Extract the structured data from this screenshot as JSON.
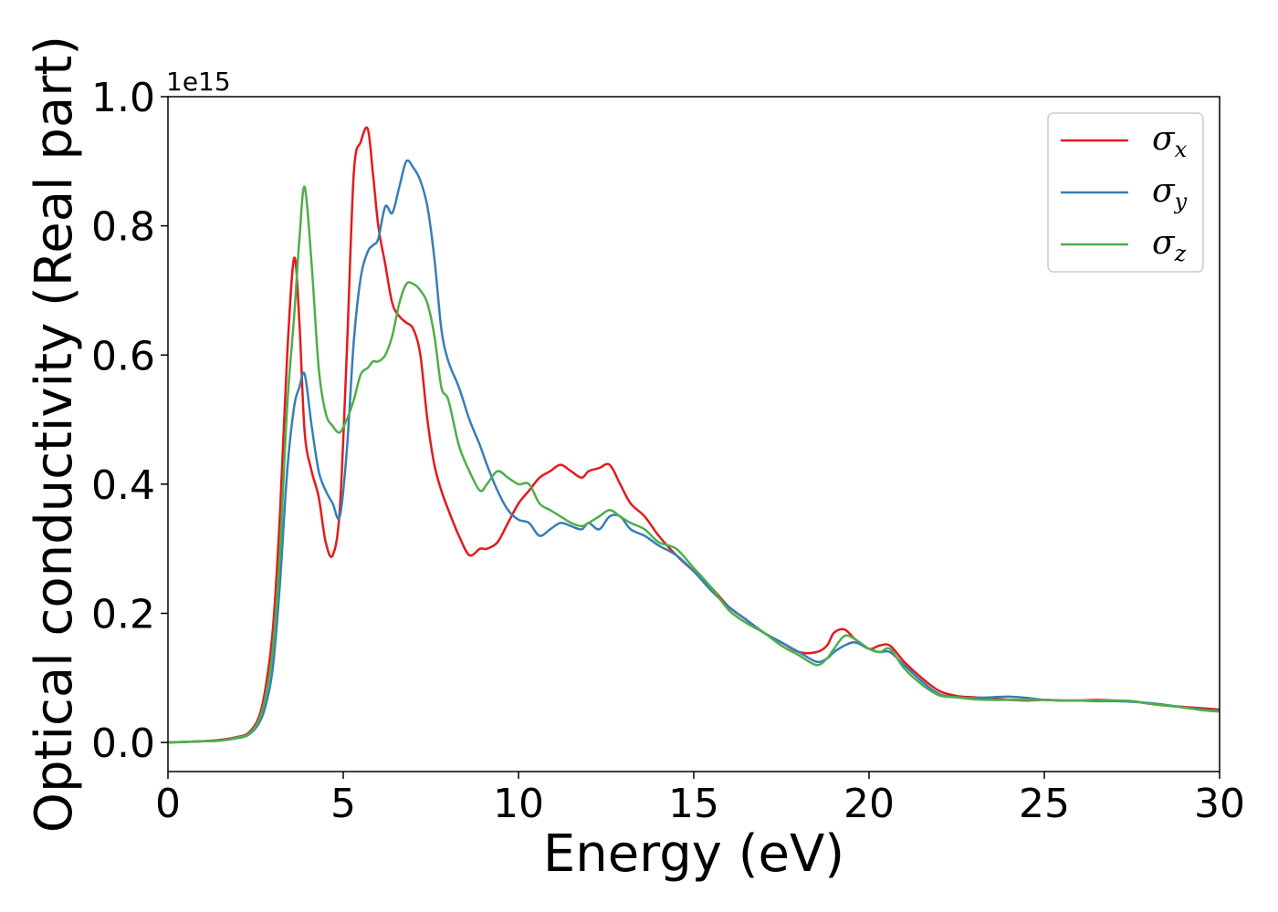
{
  "chart_data": {
    "type": "line",
    "title": "",
    "xlabel": "Energy (eV)",
    "ylabel": "Optical conductivity (Real part)",
    "y_offset_label": "1e15",
    "xlim": [
      0,
      30
    ],
    "ylim": [
      -0.045,
      1.0
    ],
    "xticks": [
      0,
      5,
      10,
      15,
      20,
      25,
      30
    ],
    "xtick_labels": [
      "0",
      "5",
      "10",
      "15",
      "20",
      "25",
      "30"
    ],
    "yticks": [
      0.0,
      0.2,
      0.4,
      0.6,
      0.8,
      1.0
    ],
    "ytick_labels": [
      "0.0",
      "0.2",
      "0.4",
      "0.6",
      "0.8",
      "1.0"
    ],
    "grid": false,
    "legend_position": "top-right",
    "series": [
      {
        "name": "σx",
        "symbol": "σ",
        "subscript": "x",
        "color": "#e41a1c",
        "x": [
          0,
          1,
          1.5,
          2,
          2.3,
          2.6,
          2.8,
          3.0,
          3.2,
          3.4,
          3.6,
          3.75,
          3.9,
          4.1,
          4.3,
          4.5,
          4.7,
          4.9,
          5.1,
          5.3,
          5.5,
          5.7,
          5.85,
          6.0,
          6.2,
          6.4,
          6.6,
          6.8,
          7.0,
          7.2,
          7.4,
          7.6,
          7.8,
          8.0,
          8.3,
          8.6,
          8.9,
          9.1,
          9.4,
          9.7,
          10.0,
          10.3,
          10.6,
          10.9,
          11.2,
          11.5,
          11.8,
          12.0,
          12.3,
          12.6,
          12.9,
          13.2,
          13.6,
          14.0,
          14.5,
          15.0,
          15.5,
          16.0,
          16.5,
          17.0,
          17.5,
          18.0,
          18.5,
          18.8,
          19.0,
          19.3,
          19.6,
          20.0,
          20.3,
          20.6,
          21.0,
          21.5,
          22.0,
          22.5,
          23.0,
          23.5,
          24.0,
          24.5,
          25.0,
          25.5,
          26.0,
          26.5,
          27.0,
          27.5,
          28.0,
          28.5,
          29.0,
          29.5,
          30.0
        ],
        "values": [
          0.0,
          0.002,
          0.004,
          0.009,
          0.015,
          0.04,
          0.09,
          0.18,
          0.36,
          0.6,
          0.75,
          0.65,
          0.48,
          0.42,
          0.38,
          0.31,
          0.29,
          0.36,
          0.6,
          0.88,
          0.93,
          0.95,
          0.88,
          0.8,
          0.74,
          0.68,
          0.66,
          0.65,
          0.64,
          0.6,
          0.5,
          0.43,
          0.39,
          0.36,
          0.32,
          0.29,
          0.3,
          0.3,
          0.31,
          0.34,
          0.37,
          0.39,
          0.41,
          0.42,
          0.43,
          0.42,
          0.41,
          0.42,
          0.425,
          0.43,
          0.4,
          0.37,
          0.35,
          0.32,
          0.29,
          0.265,
          0.24,
          0.21,
          0.19,
          0.17,
          0.155,
          0.14,
          0.14,
          0.15,
          0.17,
          0.175,
          0.16,
          0.145,
          0.15,
          0.15,
          0.125,
          0.1,
          0.08,
          0.072,
          0.07,
          0.068,
          0.066,
          0.065,
          0.066,
          0.065,
          0.065,
          0.066,
          0.065,
          0.064,
          0.06,
          0.057,
          0.055,
          0.053,
          0.051
        ]
      },
      {
        "name": "σy",
        "symbol": "σ",
        "subscript": "y",
        "color": "#377eb8",
        "x": [
          0,
          1,
          1.5,
          2,
          2.3,
          2.6,
          2.8,
          3.0,
          3.2,
          3.4,
          3.6,
          3.75,
          3.9,
          4.1,
          4.3,
          4.5,
          4.7,
          4.9,
          5.1,
          5.3,
          5.5,
          5.7,
          5.85,
          6.0,
          6.2,
          6.4,
          6.6,
          6.8,
          7.0,
          7.2,
          7.4,
          7.6,
          7.8,
          8.0,
          8.3,
          8.6,
          8.9,
          9.1,
          9.4,
          9.7,
          10.0,
          10.3,
          10.6,
          10.9,
          11.2,
          11.5,
          11.8,
          12.0,
          12.3,
          12.6,
          12.9,
          13.2,
          13.6,
          14.0,
          14.5,
          15.0,
          15.5,
          16.0,
          16.5,
          17.0,
          17.5,
          18.0,
          18.5,
          18.8,
          19.0,
          19.3,
          19.6,
          20.0,
          20.3,
          20.6,
          21.0,
          21.5,
          22.0,
          22.5,
          23.0,
          23.5,
          24.0,
          24.5,
          25.0,
          25.5,
          26.0,
          26.5,
          27.0,
          27.5,
          28.0,
          28.5,
          29.0,
          29.5,
          30.0
        ],
        "values": [
          0.0,
          0.002,
          0.003,
          0.007,
          0.012,
          0.03,
          0.06,
          0.12,
          0.25,
          0.42,
          0.52,
          0.55,
          0.57,
          0.49,
          0.42,
          0.39,
          0.37,
          0.35,
          0.45,
          0.62,
          0.72,
          0.76,
          0.77,
          0.78,
          0.83,
          0.82,
          0.86,
          0.9,
          0.89,
          0.87,
          0.83,
          0.75,
          0.64,
          0.59,
          0.55,
          0.5,
          0.46,
          0.43,
          0.39,
          0.36,
          0.345,
          0.34,
          0.32,
          0.33,
          0.34,
          0.335,
          0.33,
          0.34,
          0.33,
          0.35,
          0.35,
          0.33,
          0.32,
          0.305,
          0.29,
          0.265,
          0.235,
          0.21,
          0.19,
          0.17,
          0.155,
          0.14,
          0.125,
          0.13,
          0.14,
          0.15,
          0.155,
          0.145,
          0.14,
          0.14,
          0.12,
          0.095,
          0.075,
          0.07,
          0.069,
          0.07,
          0.071,
          0.069,
          0.066,
          0.065,
          0.065,
          0.064,
          0.064,
          0.063,
          0.061,
          0.058,
          0.054,
          0.051,
          0.049
        ]
      },
      {
        "name": "σz",
        "symbol": "σ",
        "subscript": "z",
        "color": "#4daf4a",
        "x": [
          0,
          1,
          1.5,
          2,
          2.3,
          2.6,
          2.8,
          3.0,
          3.2,
          3.4,
          3.6,
          3.75,
          3.9,
          4.1,
          4.3,
          4.5,
          4.7,
          4.9,
          5.1,
          5.3,
          5.5,
          5.7,
          5.85,
          6.0,
          6.2,
          6.4,
          6.6,
          6.8,
          7.0,
          7.2,
          7.4,
          7.6,
          7.8,
          8.0,
          8.3,
          8.6,
          8.9,
          9.1,
          9.4,
          9.7,
          10.0,
          10.3,
          10.6,
          10.9,
          11.2,
          11.5,
          11.8,
          12.0,
          12.3,
          12.6,
          12.9,
          13.2,
          13.6,
          14.0,
          14.5,
          15.0,
          15.5,
          16.0,
          16.5,
          17.0,
          17.5,
          18.0,
          18.5,
          18.8,
          19.0,
          19.3,
          19.6,
          20.0,
          20.3,
          20.6,
          21.0,
          21.5,
          22.0,
          22.5,
          23.0,
          23.5,
          24.0,
          24.5,
          25.0,
          25.5,
          26.0,
          26.5,
          27.0,
          27.5,
          28.0,
          28.5,
          29.0,
          29.5,
          30.0
        ],
        "values": [
          0.0,
          0.002,
          0.003,
          0.008,
          0.013,
          0.035,
          0.075,
          0.15,
          0.3,
          0.52,
          0.66,
          0.78,
          0.86,
          0.74,
          0.58,
          0.51,
          0.49,
          0.48,
          0.5,
          0.53,
          0.57,
          0.58,
          0.59,
          0.59,
          0.6,
          0.63,
          0.68,
          0.71,
          0.71,
          0.7,
          0.68,
          0.63,
          0.55,
          0.53,
          0.46,
          0.42,
          0.39,
          0.4,
          0.42,
          0.41,
          0.4,
          0.4,
          0.37,
          0.36,
          0.35,
          0.34,
          0.335,
          0.34,
          0.35,
          0.36,
          0.35,
          0.34,
          0.33,
          0.31,
          0.3,
          0.27,
          0.24,
          0.205,
          0.185,
          0.17,
          0.15,
          0.135,
          0.12,
          0.13,
          0.145,
          0.165,
          0.16,
          0.145,
          0.14,
          0.145,
          0.115,
          0.09,
          0.073,
          0.07,
          0.067,
          0.066,
          0.066,
          0.066,
          0.066,
          0.065,
          0.065,
          0.065,
          0.065,
          0.064,
          0.06,
          0.057,
          0.054,
          0.05,
          0.048
        ]
      }
    ]
  }
}
